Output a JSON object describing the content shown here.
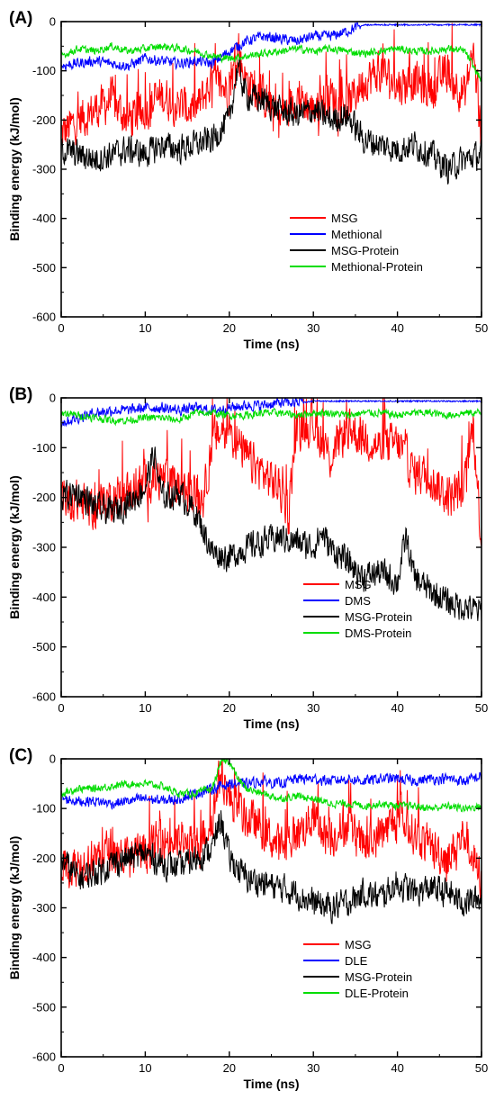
{
  "chart_data": [
    {
      "type": "line",
      "panel_label": "(A)",
      "xlabel": "Time (ns)",
      "ylabel": "Binding energy (kJ/mol)",
      "xlim": [
        0,
        50
      ],
      "ylim": [
        -600,
        0
      ],
      "xticks": [
        0,
        10,
        20,
        30,
        40,
        50
      ],
      "yticks": [
        0,
        -100,
        -200,
        -300,
        -400,
        -500,
        -600
      ],
      "legend_position": "lower-right",
      "series": [
        {
          "name": "MSG",
          "color": "#ff0000",
          "x": [
            0,
            2,
            4,
            6,
            8,
            10,
            12,
            14,
            16,
            18,
            20,
            21,
            22,
            24,
            26,
            28,
            30,
            32,
            34,
            36,
            38,
            40,
            42,
            44,
            46,
            48,
            49,
            50
          ],
          "y": [
            -230,
            -200,
            -180,
            -160,
            -200,
            -180,
            -150,
            -170,
            -180,
            -120,
            -140,
            -60,
            -120,
            -150,
            -200,
            -150,
            -180,
            -150,
            -170,
            -120,
            -100,
            -130,
            -120,
            -140,
            -100,
            -150,
            -60,
            -240
          ]
        },
        {
          "name": "Methional",
          "color": "#0000ff",
          "x": [
            0,
            2,
            4,
            6,
            8,
            10,
            12,
            14,
            16,
            18,
            20,
            22,
            24,
            26,
            28,
            30,
            32,
            34,
            36,
            38,
            40,
            42,
            44,
            46,
            48,
            50
          ],
          "y": [
            -90,
            -85,
            -80,
            -85,
            -90,
            -75,
            -80,
            -85,
            -80,
            -85,
            -60,
            -40,
            -30,
            -35,
            -40,
            -30,
            -30,
            -20,
            -5,
            -5,
            -5,
            -5,
            -5,
            -5,
            -5,
            -5
          ]
        },
        {
          "name": "MSG-Protein",
          "color": "#000000",
          "x": [
            0,
            2,
            4,
            6,
            8,
            10,
            12,
            14,
            16,
            18,
            20,
            21,
            22,
            24,
            26,
            28,
            30,
            32,
            34,
            36,
            38,
            40,
            42,
            44,
            46,
            48,
            50
          ],
          "y": [
            -260,
            -270,
            -280,
            -270,
            -260,
            -270,
            -250,
            -260,
            -250,
            -240,
            -200,
            -90,
            -150,
            -160,
            -180,
            -190,
            -180,
            -200,
            -190,
            -240,
            -250,
            -260,
            -250,
            -270,
            -300,
            -280,
            -270
          ]
        },
        {
          "name": "Methional-Protein",
          "color": "#00dd00",
          "x": [
            0,
            2,
            4,
            6,
            8,
            10,
            12,
            14,
            16,
            18,
            20,
            22,
            24,
            26,
            28,
            30,
            32,
            34,
            36,
            38,
            40,
            42,
            44,
            46,
            48,
            50
          ],
          "y": [
            -70,
            -55,
            -60,
            -50,
            -60,
            -55,
            -50,
            -55,
            -60,
            -70,
            -75,
            -70,
            -65,
            -60,
            -55,
            -60,
            -55,
            -60,
            -65,
            -60,
            -55,
            -60,
            -60,
            -55,
            -60,
            -120
          ]
        }
      ]
    },
    {
      "type": "line",
      "panel_label": "(B)",
      "xlabel": "Time (ns)",
      "ylabel": "Binding energy (kJ/mol)",
      "xlim": [
        0,
        50
      ],
      "ylim": [
        -600,
        0
      ],
      "xticks": [
        0,
        10,
        20,
        30,
        40,
        50
      ],
      "yticks": [
        0,
        -100,
        -200,
        -300,
        -400,
        -500,
        -600
      ],
      "legend_position": "lower-right",
      "series": [
        {
          "name": "MSG",
          "color": "#ff0000",
          "x": [
            0,
            2,
            4,
            6,
            8,
            10,
            12,
            14,
            16,
            17,
            18,
            20,
            22,
            24,
            26,
            27,
            28,
            30,
            32,
            34,
            36,
            38,
            40,
            42,
            44,
            46,
            48,
            49,
            50
          ],
          "y": [
            -200,
            -210,
            -220,
            -200,
            -190,
            -170,
            -160,
            -180,
            -190,
            -200,
            -80,
            -60,
            -120,
            -150,
            -180,
            -230,
            -60,
            -50,
            -120,
            -60,
            -80,
            -100,
            -90,
            -150,
            -160,
            -200,
            -180,
            -50,
            -290
          ]
        },
        {
          "name": "DMS",
          "color": "#0000ff",
          "x": [
            0,
            2,
            4,
            6,
            8,
            10,
            12,
            14,
            16,
            18,
            20,
            22,
            24,
            26,
            28,
            30,
            32,
            34,
            36,
            38,
            40,
            42,
            44,
            46,
            48,
            50
          ],
          "y": [
            -50,
            -40,
            -30,
            -25,
            -25,
            -20,
            -20,
            -25,
            -20,
            -25,
            -20,
            -15,
            -15,
            -10,
            -10,
            -5,
            -5,
            -5,
            -5,
            -5,
            -5,
            -5,
            -5,
            -5,
            -5,
            -5
          ]
        },
        {
          "name": "MSG-Protein",
          "color": "#000000",
          "x": [
            0,
            2,
            4,
            6,
            8,
            10,
            11,
            12,
            14,
            16,
            18,
            20,
            22,
            24,
            26,
            28,
            30,
            31,
            32,
            34,
            36,
            38,
            40,
            41,
            42,
            44,
            46,
            48,
            50
          ],
          "y": [
            -200,
            -190,
            -220,
            -230,
            -210,
            -180,
            -110,
            -200,
            -190,
            -230,
            -310,
            -320,
            -300,
            -290,
            -280,
            -290,
            -300,
            -270,
            -300,
            -330,
            -360,
            -350,
            -370,
            -280,
            -360,
            -390,
            -410,
            -420,
            -430
          ]
        },
        {
          "name": "DMS-Protein",
          "color": "#00dd00",
          "x": [
            0,
            2,
            4,
            6,
            8,
            10,
            12,
            14,
            16,
            18,
            20,
            22,
            24,
            26,
            28,
            30,
            32,
            34,
            36,
            38,
            40,
            42,
            44,
            46,
            48,
            50
          ],
          "y": [
            -30,
            -35,
            -40,
            -45,
            -45,
            -40,
            -40,
            -45,
            -30,
            -30,
            -35,
            -35,
            -30,
            -30,
            -35,
            -30,
            -30,
            -35,
            -30,
            -30,
            -35,
            -30,
            -30,
            -35,
            -30,
            -30
          ]
        }
      ]
    },
    {
      "type": "line",
      "panel_label": "(C)",
      "xlabel": "Time (ns)",
      "ylabel": "Binding energy (kJ/mol)",
      "xlim": [
        0,
        50
      ],
      "ylim": [
        -600,
        0
      ],
      "xticks": [
        0,
        10,
        20,
        30,
        40,
        50
      ],
      "yticks": [
        0,
        -100,
        -200,
        -300,
        -400,
        -500,
        -600
      ],
      "legend_position": "lower-right",
      "series": [
        {
          "name": "MSG",
          "color": "#ff0000",
          "x": [
            0,
            2,
            4,
            6,
            8,
            10,
            12,
            14,
            16,
            18,
            19,
            20,
            22,
            24,
            26,
            28,
            30,
            32,
            34,
            36,
            38,
            40,
            42,
            44,
            46,
            48,
            50
          ],
          "y": [
            -230,
            -210,
            -200,
            -180,
            -200,
            -190,
            -160,
            -170,
            -180,
            -120,
            -20,
            -80,
            -120,
            -140,
            -180,
            -150,
            -120,
            -160,
            -130,
            -180,
            -150,
            -120,
            -150,
            -180,
            -200,
            -150,
            -250
          ]
        },
        {
          "name": "DLE",
          "color": "#0000ff",
          "x": [
            0,
            2,
            4,
            6,
            8,
            10,
            12,
            14,
            16,
            18,
            20,
            22,
            24,
            26,
            28,
            30,
            32,
            34,
            36,
            38,
            40,
            42,
            44,
            46,
            48,
            50
          ],
          "y": [
            -80,
            -85,
            -85,
            -90,
            -85,
            -80,
            -85,
            -80,
            -70,
            -60,
            -50,
            -50,
            -45,
            -50,
            -40,
            -40,
            -45,
            -40,
            -45,
            -40,
            -40,
            -45,
            -40,
            -40,
            -45,
            -35
          ]
        },
        {
          "name": "MSG-Protein",
          "color": "#000000",
          "x": [
            0,
            2,
            4,
            6,
            8,
            10,
            12,
            14,
            16,
            18,
            19,
            20,
            22,
            24,
            26,
            28,
            30,
            32,
            34,
            36,
            38,
            40,
            42,
            44,
            46,
            48,
            50
          ],
          "y": [
            -200,
            -240,
            -230,
            -210,
            -200,
            -190,
            -210,
            -220,
            -200,
            -180,
            -120,
            -200,
            -240,
            -250,
            -260,
            -270,
            -290,
            -300,
            -290,
            -270,
            -280,
            -250,
            -270,
            -260,
            -270,
            -290,
            -280
          ]
        },
        {
          "name": "DLE-Protein",
          "color": "#00dd00",
          "x": [
            0,
            2,
            4,
            6,
            8,
            10,
            12,
            14,
            16,
            18,
            19,
            20,
            21,
            22,
            24,
            26,
            28,
            30,
            32,
            34,
            36,
            38,
            40,
            42,
            44,
            46,
            48,
            50
          ],
          "y": [
            -70,
            -60,
            -60,
            -55,
            -50,
            -50,
            -55,
            -70,
            -70,
            -60,
            -5,
            -5,
            -40,
            -60,
            -70,
            -80,
            -75,
            -80,
            -90,
            -90,
            -95,
            -90,
            -95,
            -95,
            -100,
            -95,
            -100,
            -95
          ]
        }
      ]
    }
  ]
}
